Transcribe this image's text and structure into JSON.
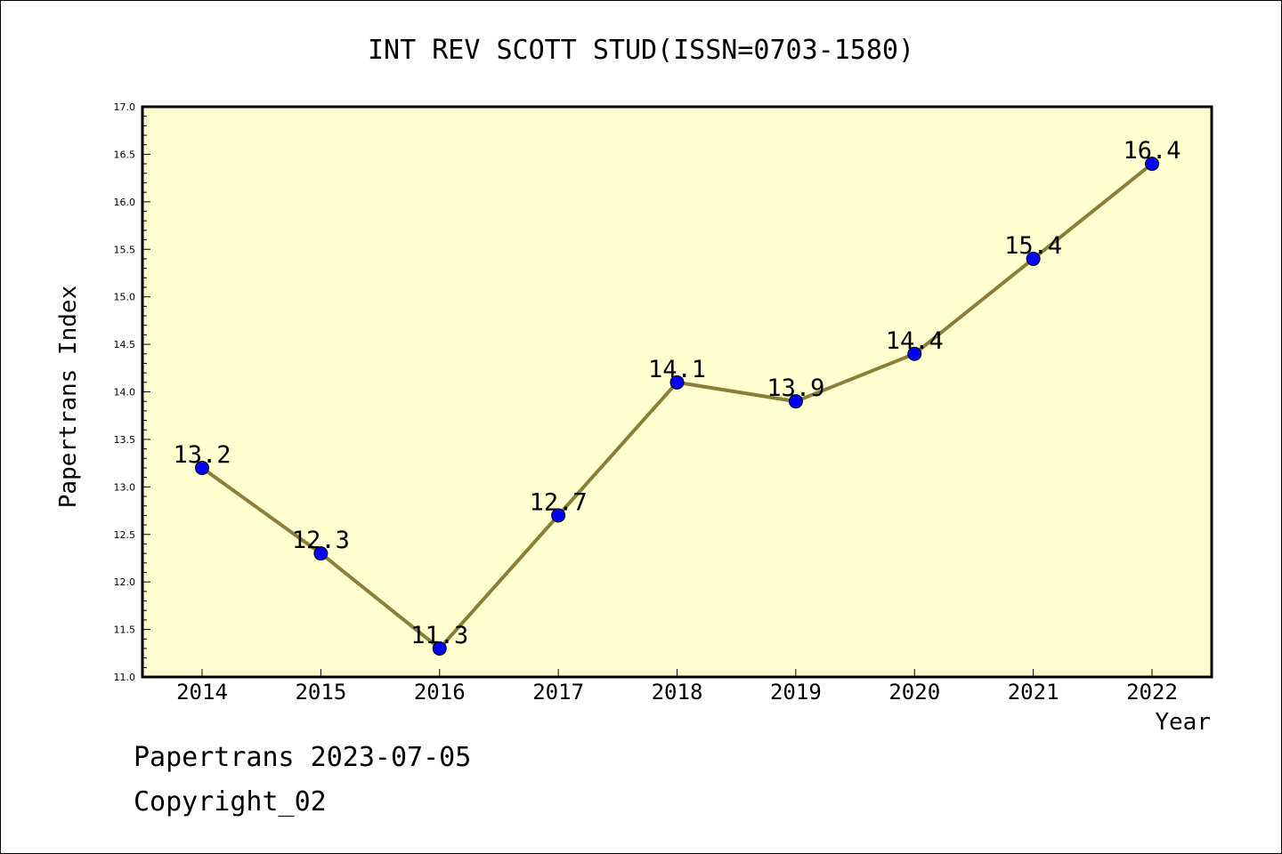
{
  "chart_data": {
    "type": "line",
    "title": "INT REV SCOTT STUD(ISSN=0703-1580)",
    "xlabel": "Year",
    "ylabel": "Papertrans Index",
    "categories": [
      "2014",
      "2015",
      "2016",
      "2017",
      "2018",
      "2019",
      "2020",
      "2021",
      "2022"
    ],
    "values": [
      13.2,
      12.3,
      11.3,
      12.7,
      14.1,
      13.9,
      14.4,
      15.4,
      16.4
    ],
    "data_labels": [
      "13.2",
      "12.3",
      "11.3",
      "12.7",
      "14.1",
      "13.9",
      "14.4",
      "15.4",
      "16.4"
    ],
    "ylim": [
      11.0,
      17.0
    ],
    "yticks": [
      "11.0",
      "11.5",
      "12.0",
      "12.5",
      "13.0",
      "13.5",
      "14.0",
      "14.5",
      "15.0",
      "15.5",
      "16.0",
      "16.5",
      "17.0"
    ],
    "grid": false,
    "colors": {
      "plot_background": "#ffffd0",
      "line": "#8b7d3a",
      "marker": "#0000ff"
    }
  },
  "footer": {
    "line1": "Papertrans 2023-07-05",
    "line2": "Copyright_02"
  }
}
